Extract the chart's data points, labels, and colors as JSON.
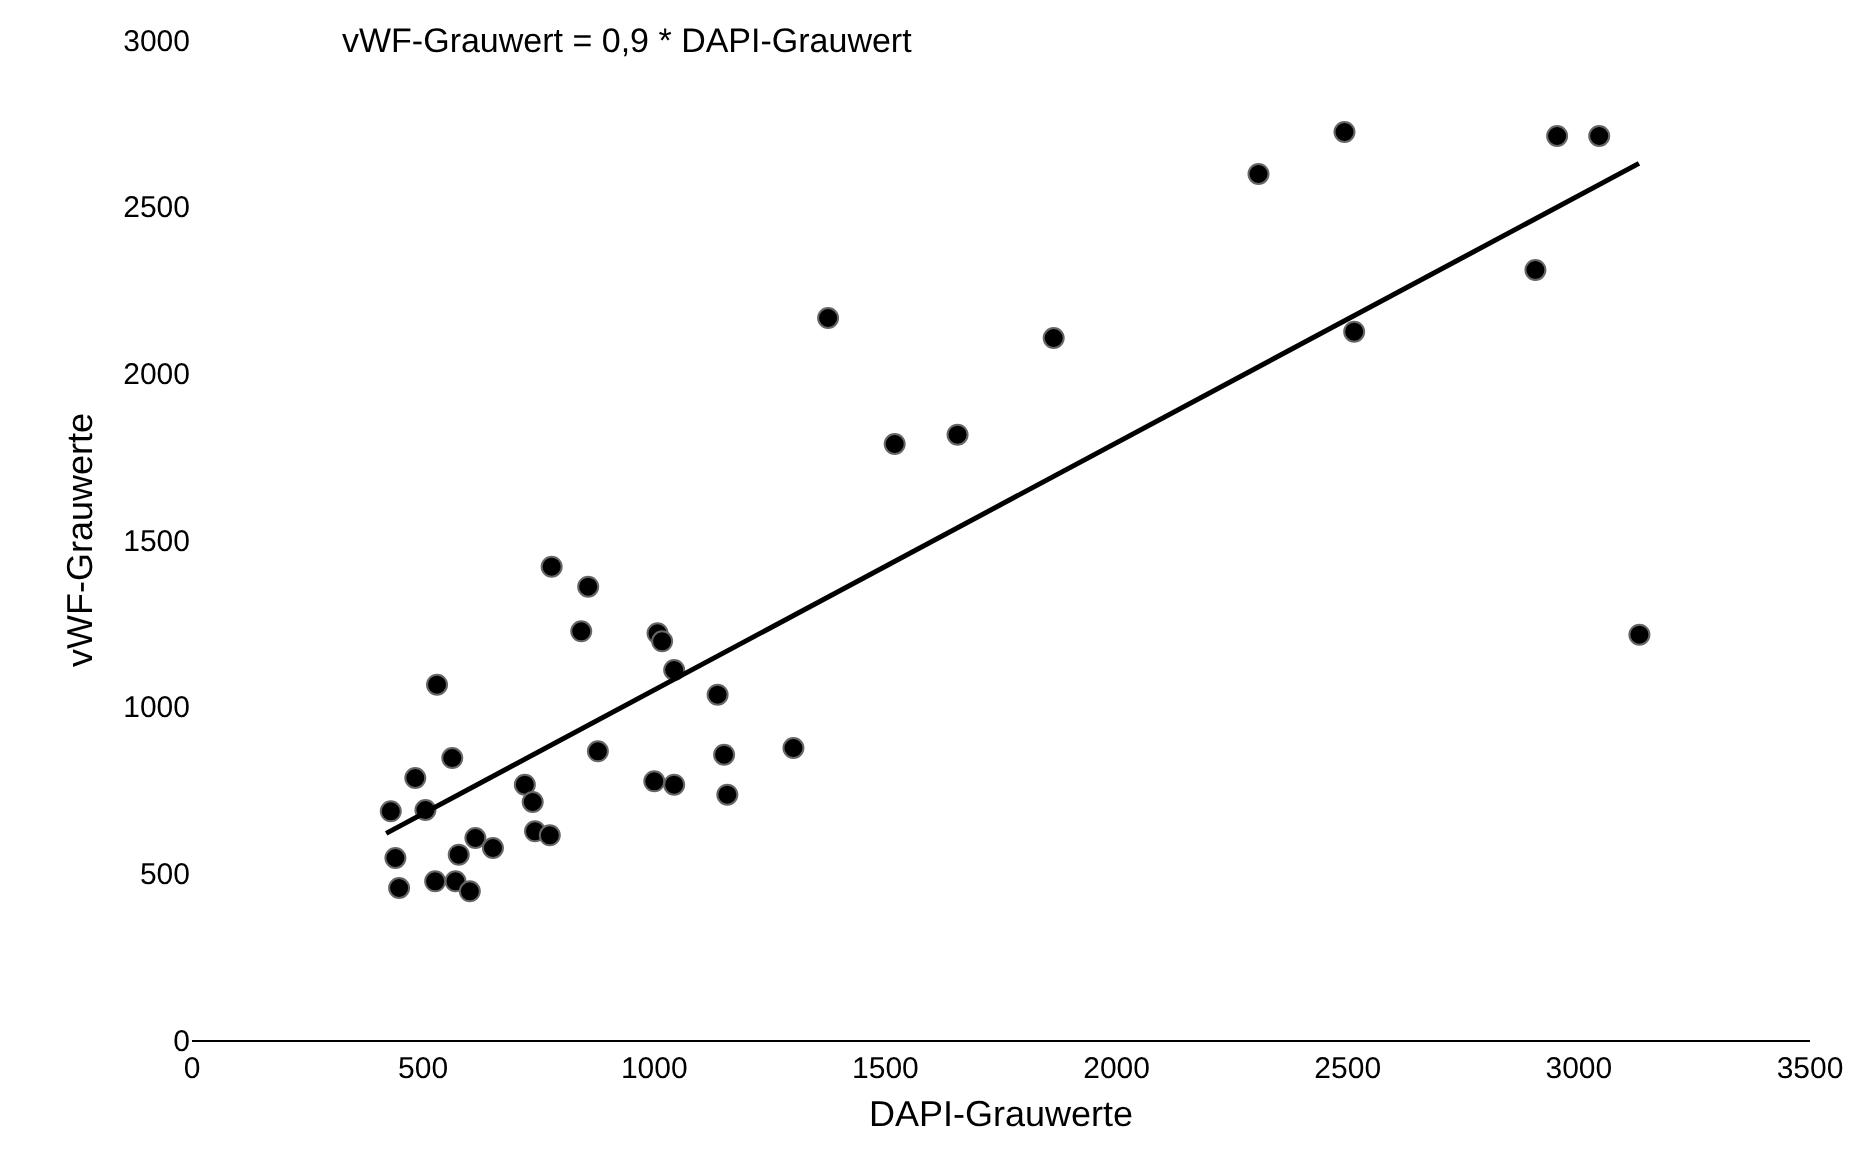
{
  "chart_data": {
    "type": "scatter",
    "xlabel": "DAPI-Grauwerte",
    "ylabel": "vWF-Grauwerte",
    "annotations": [
      "vWF-Grauwert = 0,9 * DAPI-Grauwert"
    ],
    "xlim": [
      0,
      3500
    ],
    "xticks": [
      0,
      500,
      1000,
      1500,
      2000,
      2500,
      3000,
      3500
    ],
    "ylim": [
      0,
      3000
    ],
    "yticks": [
      0,
      500,
      1000,
      1500,
      2000,
      2500,
      3000
    ],
    "grid": false,
    "marker": "circle",
    "series": [
      {
        "type": "scatter",
        "color": "#000000",
        "x": [
          778,
          857,
          842,
          1007,
          1017,
          1043,
          1137,
          530,
          563,
          483,
          430,
          505,
          878,
          1151,
          1301,
          720,
          737,
          1000,
          1043,
          1158,
          440,
          448,
          526,
          570,
          601,
          577,
          613,
          651,
          742,
          774,
          1376,
          1864,
          1520,
          1656,
          2514,
          3131,
          2307,
          2493,
          2906,
          2953,
          3044
        ],
        "values": [
          1420,
          1360,
          1226,
          1220,
          1196,
          1110,
          1036,
          1066,
          846,
          786,
          686,
          690,
          866,
          856,
          876,
          766,
          714,
          776,
          766,
          736,
          546,
          456,
          476,
          476,
          446,
          556,
          606,
          576,
          626,
          614,
          2166,
          2106,
          1788,
          1816,
          2125,
          1216,
          2598,
          2724,
          2310,
          2712,
          2712
        ]
      },
      {
        "type": "line",
        "color": "#000000",
        "line_style": "solid",
        "marker": "none",
        "x": [
          420,
          3130
        ],
        "values": [
          620,
          2630
        ]
      }
    ]
  }
}
